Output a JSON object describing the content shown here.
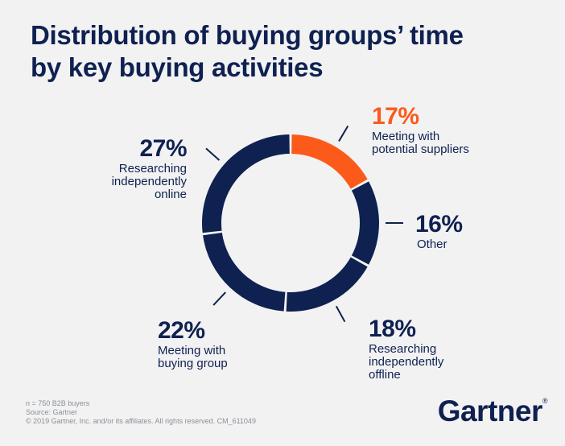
{
  "title_lines": [
    "Distribution of buying groups’ time",
    "by key buying activities"
  ],
  "colors": {
    "navy": "#0f2151",
    "accent": "#fc5a1a",
    "background": "#f2f2f2"
  },
  "chart_data": {
    "type": "pie",
    "variant": "donut",
    "title": "Distribution of buying groups’ time by key buying activities",
    "slices": [
      {
        "pct_label": "17%",
        "value": 17,
        "label_lines": [
          "Meeting with",
          "potential suppliers"
        ],
        "color": "#fc5a1a"
      },
      {
        "pct_label": "16%",
        "value": 16,
        "label_lines": [
          "Other"
        ],
        "color": "#0f2151"
      },
      {
        "pct_label": "18%",
        "value": 18,
        "label_lines": [
          "Researching",
          "independently",
          "offline"
        ],
        "color": "#0f2151"
      },
      {
        "pct_label": "22%",
        "value": 22,
        "label_lines": [
          "Meeting with",
          "buying group"
        ],
        "color": "#0f2151"
      },
      {
        "pct_label": "27%",
        "value": 27,
        "label_lines": [
          "Researching",
          "independently",
          "online"
        ],
        "color": "#0f2151"
      }
    ]
  },
  "footnote_lines": [
    "n = 750 B2B buyers",
    "Source: Gartner",
    "© 2019 Gartner, Inc. and/or its affiliates. All rights reserved. CM_611049"
  ],
  "logo": {
    "text": "Gartner",
    "mark": "®"
  }
}
